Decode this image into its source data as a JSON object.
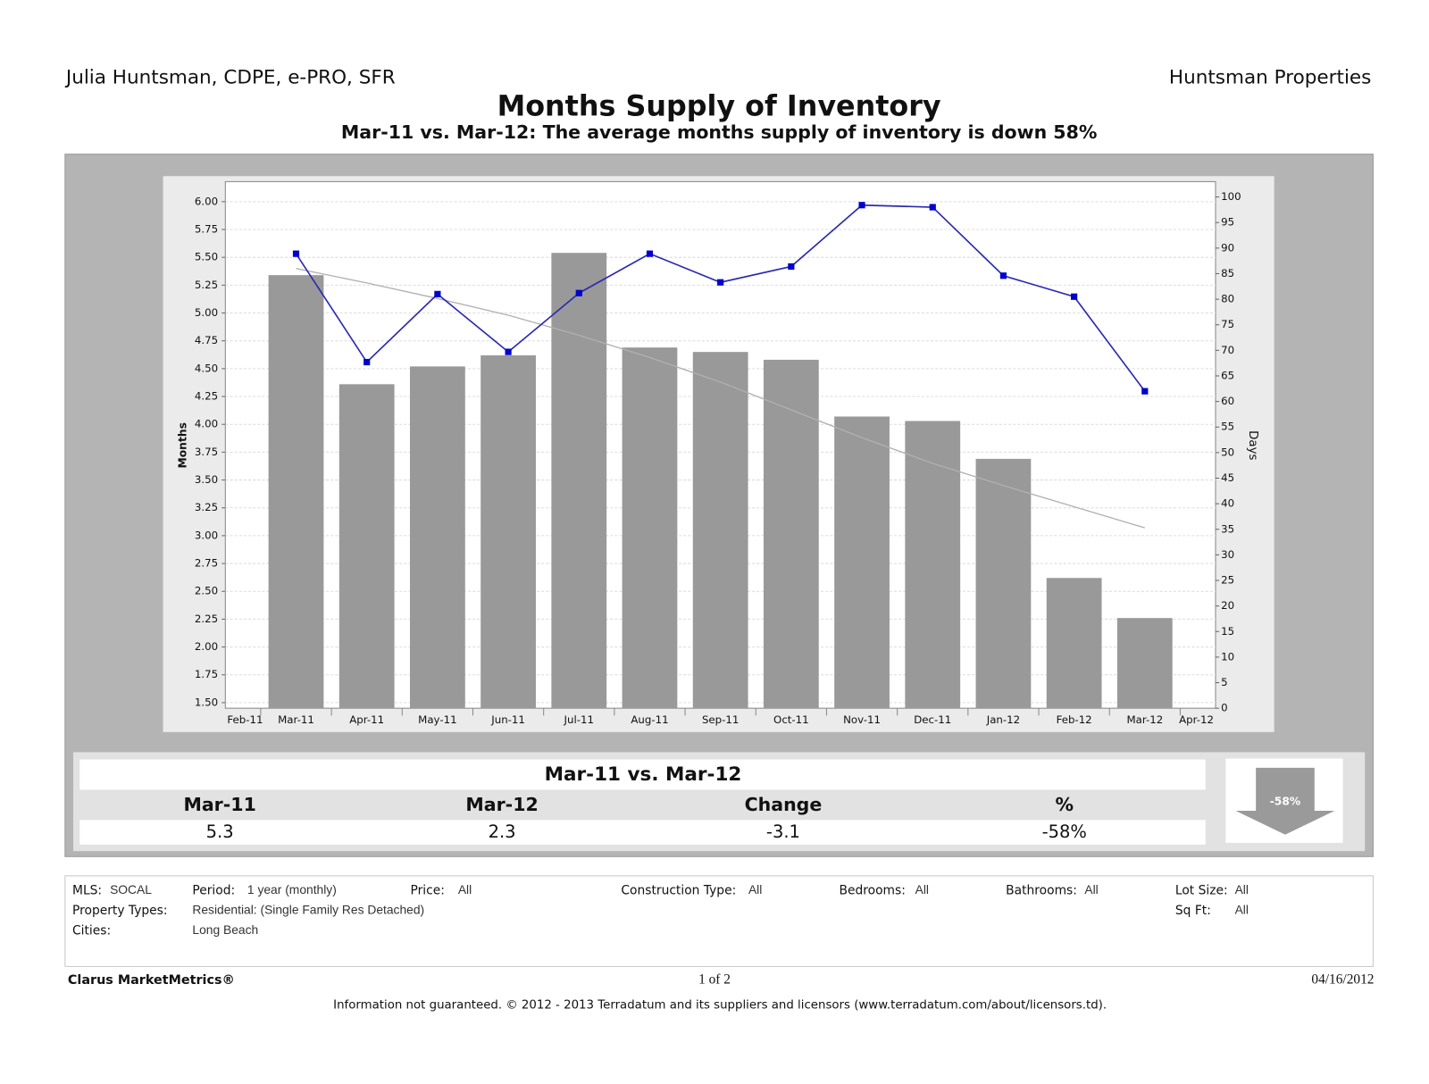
{
  "header": {
    "left": "Julia Huntsman, CDPE, e-PRO, SFR",
    "right": "Huntsman Properties"
  },
  "chart_data": {
    "type": "bar",
    "title": "Months Supply of Inventory",
    "subtitle": "Mar-11 vs. Mar-12:  The average months supply of inventory is down 58%",
    "y_label": "Months",
    "y2_label": "Days",
    "categories": [
      "Feb-11",
      "Mar-11",
      "Apr-11",
      "May-11",
      "Jun-11",
      "Jul-11",
      "Aug-11",
      "Sep-11",
      "Oct-11",
      "Nov-11",
      "Dec-11",
      "Jan-12",
      "Feb-12",
      "Mar-12",
      "Apr-12"
    ],
    "series": [
      {
        "type": "bar",
        "color": "#999999",
        "values": [
          null,
          5.34,
          4.36,
          4.52,
          4.62,
          5.54,
          4.69,
          4.65,
          4.58,
          4.07,
          4.03,
          3.69,
          2.62,
          2.26,
          null
        ]
      },
      {
        "type": "line",
        "color": "#b0b0b0",
        "values": [
          null,
          5.4,
          5.27,
          5.13,
          4.98,
          4.8,
          4.6,
          4.38,
          4.13,
          3.88,
          3.65,
          3.45,
          3.26,
          3.07,
          null
        ]
      },
      {
        "type": "line",
        "color": "#2a2ab0",
        "marker_color": "#0000cc",
        "axis": "y2",
        "values": [
          null,
          88.9,
          67.7,
          81,
          69.7,
          81.2,
          88.9,
          83.3,
          86.4,
          98.4,
          98,
          84.6,
          80.5,
          62,
          null
        ]
      }
    ],
    "ylim": [
      1.45,
      6.18
    ],
    "yticks": [
      {
        "value": 1.5,
        "label": "1.50"
      },
      {
        "value": 1.75,
        "label": "1.75"
      },
      {
        "value": 2,
        "label": "2.00"
      },
      {
        "value": 2.25,
        "label": "2.25"
      },
      {
        "value": 2.5,
        "label": "2.50"
      },
      {
        "value": 2.75,
        "label": "2.75"
      },
      {
        "value": 3,
        "label": "3.00"
      },
      {
        "value": 3.25,
        "label": "3.25"
      },
      {
        "value": 3.5,
        "label": "3.50"
      },
      {
        "value": 3.75,
        "label": "3.75"
      },
      {
        "value": 4,
        "label": "4.00"
      },
      {
        "value": 4.25,
        "label": "4.25"
      },
      {
        "value": 4.5,
        "label": "4.50"
      },
      {
        "value": 4.75,
        "label": "4.75"
      },
      {
        "value": 5,
        "label": "5.00"
      },
      {
        "value": 5.25,
        "label": "5.25"
      },
      {
        "value": 5.5,
        "label": "5.50"
      },
      {
        "value": 5.75,
        "label": "5.75"
      },
      {
        "value": 6,
        "label": "6.00"
      }
    ],
    "y2lim": [
      0,
      103
    ],
    "y2ticks": [
      0,
      5,
      10,
      15,
      20,
      25,
      30,
      35,
      40,
      45,
      50,
      55,
      60,
      65,
      70,
      75,
      80,
      85,
      90,
      95,
      100
    ],
    "grid": true
  },
  "summary": {
    "title": "Mar-11 vs. Mar-12",
    "headers": [
      "Mar-11",
      "Mar-12",
      "Change",
      "%"
    ],
    "values": [
      "5.3",
      "2.3",
      "-3.1",
      "-58%"
    ],
    "badge": "-58%"
  },
  "filters": [
    {
      "label": "MLS:",
      "value": "SOCAL"
    },
    {
      "label": "Period:",
      "value": "1 year (monthly)"
    },
    {
      "label": "Price:",
      "value": "All"
    },
    {
      "label": "Construction Type:",
      "value": "All"
    },
    {
      "label": "Bedrooms:",
      "value": "All"
    },
    {
      "label": "Bathrooms:",
      "value": "All"
    },
    {
      "label": "Lot Size:",
      "value": "All"
    },
    {
      "label": "Property Types:",
      "value": "Residential: (Single Family Res Detached)"
    },
    {
      "label": "Sq Ft:",
      "value": "All"
    },
    {
      "label": "Cities:",
      "value": "Long Beach"
    }
  ],
  "footer": {
    "brand": "Clarus MarketMetrics®",
    "page": "1 of 2",
    "date": "04/16/2012",
    "disclaimer": "Information not guaranteed.  © 2012 - 2013 Terradatum and its suppliers and licensors (www.terradatum.com/about/licensors.td)."
  }
}
